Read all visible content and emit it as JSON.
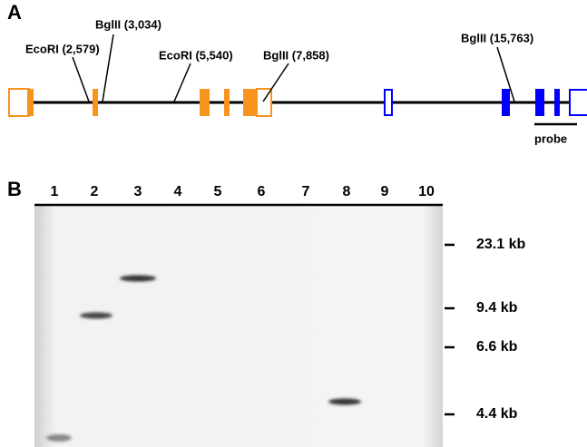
{
  "panel_a": {
    "label": "A",
    "sites": [
      "EcoRI (2,579)",
      "BglII (3,034)",
      "EcoRI (5,540)",
      "BglII (7,858)",
      "BglII (15,763)"
    ],
    "probe": "probe"
  },
  "panel_b": {
    "label": "B",
    "lanes": [
      "1",
      "2",
      "3",
      "4",
      "5",
      "6",
      "7",
      "8",
      "9",
      "10"
    ],
    "markers": [
      "23.1 kb",
      "9.4 kb",
      "6.6 kb",
      "4.4 kb"
    ]
  }
}
